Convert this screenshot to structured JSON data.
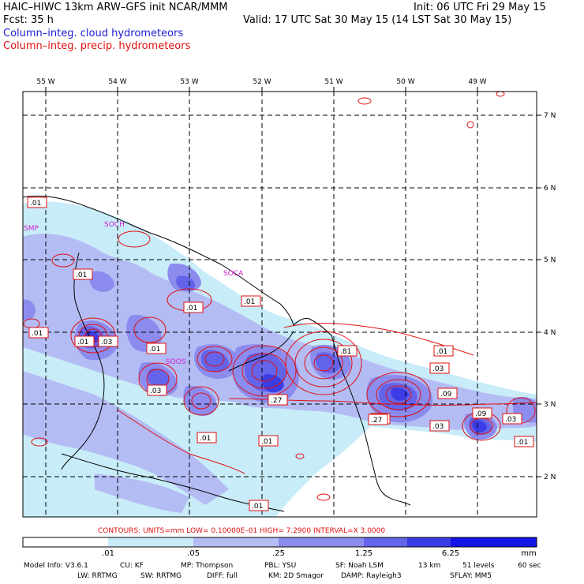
{
  "header": {
    "title_left": "HAIC–HIWC 13km ARW–GFS init   NCAR/MMM",
    "title_right": "Init: 06 UTC Fri 29 May 15",
    "fcst_label": "Fcst:   35 h",
    "valid": "Valid: 17 UTC Sat 30 May 15 (14 LST Sat 30 May 15)",
    "legend_cloud": "Column–integ. cloud hydrometeors",
    "legend_precip": "Column–integ. precip. hydrometeors"
  },
  "lon_labels": [
    "55 W",
    "54 W",
    "53 W",
    "52 W",
    "51 W",
    "50 W",
    "49 W"
  ],
  "lat_labels": [
    "7 N",
    "6 N",
    "5 N",
    "4 N",
    "3 N",
    "2 N"
  ],
  "place_labels": [
    "SMP",
    "SOCH",
    "SOCA",
    "SOOS"
  ],
  "contour_labels": [
    ".01",
    ".01",
    ".01",
    ".01",
    ".01",
    ".81",
    ".03",
    ".01",
    ".03",
    ".01",
    ".27",
    ".03",
    ".01",
    ".01",
    ".01",
    ".03",
    ".27",
    ".09",
    ".03",
    ".09",
    ".03",
    ".01",
    ".01"
  ],
  "contours_line": "CONTOURS:  UNITS=mm   LOW= 0.10000E–01   HIGH=  7.2900     INTERVAL=X  3.0000",
  "colorbar": {
    "ticks": [
      ".01",
      ".05",
      ".25",
      "1.25",
      "6.25"
    ],
    "unit": "mm",
    "colors": [
      "#ffffff",
      "#c8ecf8",
      "#b4bcf4",
      "#8c8cee",
      "#6464ea",
      "#3c3ce6",
      "#1414e8"
    ]
  },
  "footer": {
    "line1": [
      "Model Info: V3.6.1",
      "CU: KF",
      "MP: Thompson",
      "PBL: YSU",
      "SF: Noah LSM",
      "13 km",
      "51 levels",
      "60 sec"
    ],
    "line2": [
      "LW: RRTMG",
      "SW: RRTMG",
      "DIFF: full",
      "KM: 2D Smagor",
      "DAMP: Rayleigh3",
      "SFLAY: MM5"
    ]
  }
}
